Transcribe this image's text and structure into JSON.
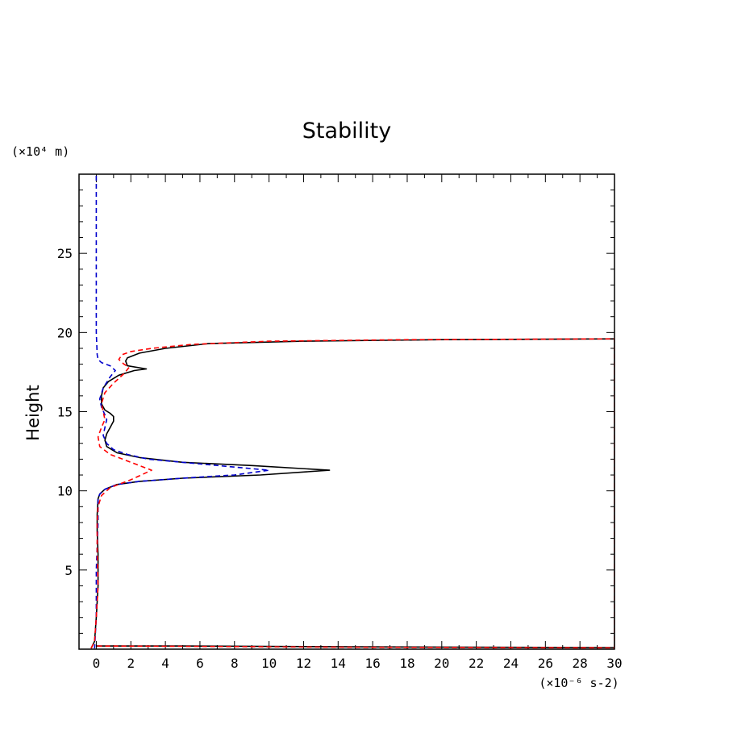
{
  "chart_data": {
    "type": "line",
    "title": "Stability",
    "ylabel": "Height",
    "x_unit_label": "(×10⁻⁶ s-2)",
    "y_unit_label": "(×10⁴ m)",
    "xlim": [
      -1,
      30
    ],
    "ylim": [
      0,
      30
    ],
    "x_ticks": [
      0,
      2,
      4,
      6,
      8,
      10,
      12,
      14,
      16,
      18,
      20,
      22,
      24,
      26,
      28,
      30
    ],
    "y_ticks": [
      5,
      10,
      15,
      20,
      25
    ],
    "grid": false,
    "series": [
      {
        "color": "#000000",
        "dash": "solid",
        "x": [
          -0.3,
          -0.1,
          0.0,
          0.1,
          0.1,
          0.05,
          0.05,
          0.1,
          0.2,
          0.5,
          1.2,
          2.5,
          5.0,
          9.5,
          13.5,
          9.0,
          5.0,
          2.5,
          1.2,
          0.6,
          0.5,
          0.6,
          0.8,
          1.0,
          1.0,
          0.8,
          0.5,
          0.3,
          0.3,
          0.4,
          0.7,
          1.3,
          2.2,
          2.9,
          1.8,
          1.7,
          1.8,
          2.5,
          4.0,
          6.5,
          12.0,
          20.0,
          30.0,
          30.0,
          15.0,
          5.0,
          0.0
        ],
        "y": [
          0.05,
          0.5,
          2.0,
          4.0,
          6.0,
          7.5,
          8.5,
          9.5,
          9.8,
          10.1,
          10.4,
          10.6,
          10.8,
          11.0,
          11.3,
          11.6,
          11.8,
          12.1,
          12.4,
          12.8,
          13.2,
          13.6,
          14.0,
          14.4,
          14.7,
          14.9,
          15.1,
          15.5,
          16.0,
          16.5,
          16.9,
          17.3,
          17.6,
          17.7,
          17.9,
          18.2,
          18.4,
          18.7,
          19.0,
          19.3,
          19.45,
          19.55,
          19.6,
          0.1,
          0.15,
          0.2,
          0.2
        ]
      },
      {
        "color": "#0000cc",
        "dash": "dashed",
        "x": [
          0.0,
          0.0,
          0.0,
          0.05,
          0.1,
          0.3,
          0.8,
          1.1,
          0.8,
          0.4,
          0.2,
          0.3,
          0.5,
          0.6,
          0.5,
          0.4,
          0.6,
          1.0,
          1.8,
          3.0,
          5.0,
          8.0,
          10.0,
          8.0,
          5.0,
          2.5,
          1.2,
          0.5,
          0.2,
          0.1,
          0.1,
          0.0,
          0.0,
          -0.1
        ],
        "y": [
          29.9,
          25.0,
          20.0,
          18.6,
          18.3,
          18.1,
          17.9,
          17.6,
          17.2,
          16.5,
          15.8,
          15.3,
          14.8,
          14.5,
          14.0,
          13.5,
          13.0,
          12.6,
          12.3,
          12.0,
          11.8,
          11.5,
          11.3,
          11.0,
          10.8,
          10.6,
          10.4,
          10.1,
          9.8,
          9.5,
          8.0,
          5.0,
          2.0,
          0.05
        ]
      },
      {
        "color": "#ff0000",
        "dash": "dashed",
        "x": [
          -0.3,
          -0.1,
          0.0,
          0.1,
          0.05,
          0.05,
          0.1,
          0.3,
          0.8,
          2.0,
          3.2,
          2.0,
          0.8,
          0.2,
          0.1,
          0.3,
          0.5,
          0.4,
          0.3,
          0.5,
          1.0,
          1.6,
          1.9,
          1.6,
          1.3,
          1.5,
          2.0,
          3.2,
          5.5,
          10.0,
          18.0,
          30.0,
          30.0,
          15.0,
          5.0,
          0.0
        ],
        "y": [
          0.05,
          0.5,
          2.0,
          4.0,
          6.0,
          8.0,
          9.0,
          9.7,
          10.2,
          10.7,
          11.3,
          11.8,
          12.3,
          12.8,
          13.4,
          14.0,
          14.5,
          15.0,
          15.5,
          16.2,
          16.8,
          17.4,
          17.8,
          18.0,
          18.3,
          18.6,
          18.8,
          19.0,
          19.25,
          19.45,
          19.55,
          19.6,
          0.08,
          0.12,
          0.18,
          0.2
        ]
      }
    ]
  }
}
